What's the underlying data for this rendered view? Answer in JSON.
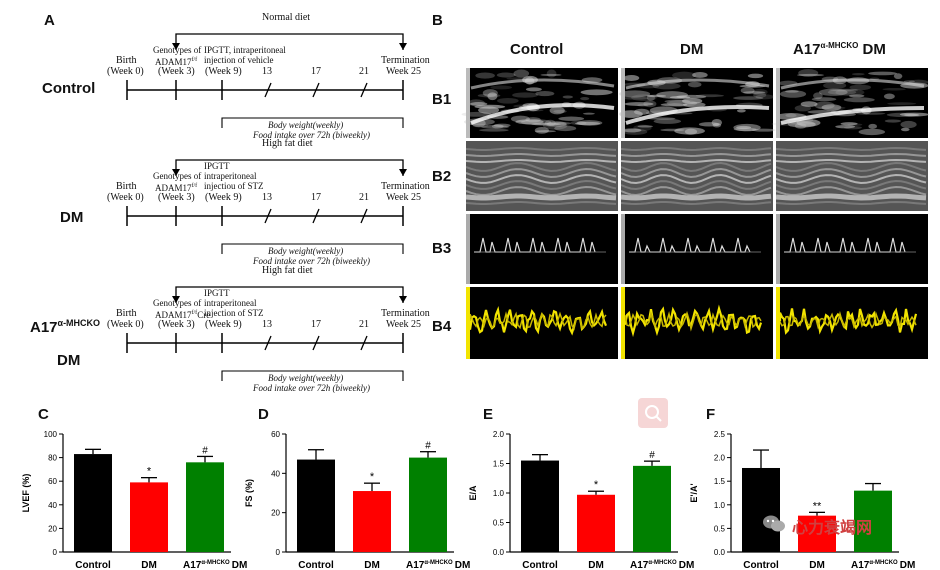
{
  "panels": {
    "A": "A",
    "B": "B",
    "C": "C",
    "D": "D",
    "E": "E",
    "F": "F"
  },
  "timeline": {
    "groups": [
      {
        "label": "Control",
        "diet": "Normal diet",
        "birth": "Birth",
        "birth_week": "(Week 0)",
        "genotype_l1": "Genotypes of",
        "genotype_l2": "ADAM17",
        "genotype_sup": "f/f",
        "genotype_week": "(Week 3)",
        "ipgtt_l1": "IPGTT, intraperitoneal",
        "ipgtt_l2": "injection of vehicle",
        "ipgtt_l3": "",
        "ipgtt_week": "(Week 9)",
        "w13": "13",
        "w17": "17",
        "w21": "21",
        "term": "Termination",
        "term_week": "Week 25",
        "bw": "Body weight(weekly)",
        "food": "Food intake over 72h (biweekly)"
      },
      {
        "label": "DM",
        "diet": "High fat diet",
        "birth": "Birth",
        "birth_week": "(Week 0)",
        "genotype_l1": "Genotypes of",
        "genotype_l2": "ADAM17",
        "genotype_sup": "f/f",
        "genotype_week": "(Week 3)",
        "ipgtt_l1": "IPGTT",
        "ipgtt_l2": "intraperitoneal",
        "ipgtt_l3": "injectiou of STZ",
        "ipgtt_week": "(Week 9)",
        "w13": "13",
        "w17": "17",
        "w21": "21",
        "term": "Termination",
        "term_week": "Week 25",
        "bw": "Body weight(weekly)",
        "food": "Food intake over 72h (biweekly)"
      },
      {
        "label": "A17",
        "label_sup": "α-MHCKO",
        "label2": "DM",
        "diet": "High fat diet",
        "birth": "Birth",
        "birth_week": "(Week 0)",
        "genotype_l1": "Genotypes of",
        "genotype_l2": "ADAM17",
        "genotype_sup": "f/f",
        "genotype_l2b": "Cre",
        "genotype_week": "(Week 3)",
        "ipgtt_l1": "IPGTT",
        "ipgtt_l2": "intraperitoneal",
        "ipgtt_l3": "injection of STZ",
        "ipgtt_week": "(Week 9)",
        "w13": "13",
        "w17": "17",
        "w21": "21",
        "term": "Termination",
        "term_week": "Week 25",
        "bw": "Body weight(weekly)",
        "food": "Food intake over 72h (biweekly)"
      }
    ]
  },
  "echo": {
    "columns": [
      "Control",
      "DM",
      "A17"
    ],
    "col3_sup": "α-MHCKO",
    "col3_suffix": " DM",
    "rows": [
      "B1",
      "B2",
      "B3",
      "B4"
    ]
  },
  "watermark": {
    "text": "心力衰竭网"
  },
  "chart_data": [
    {
      "panel": "C",
      "type": "bar",
      "title": "",
      "ylabel": "LVEF (%)",
      "xlabel": "",
      "categories": [
        "Control",
        "DM",
        "A17"
      ],
      "cat3_sup": "α-MHCKO",
      "cat3_suffix": "DM",
      "values": [
        83,
        59,
        76
      ],
      "errors": [
        4,
        4,
        5
      ],
      "significance": [
        "",
        "*",
        "#"
      ],
      "colors": [
        "#000000",
        "#ff0000",
        "#008000"
      ],
      "ylim": [
        0,
        100
      ],
      "yticks": [
        0,
        20,
        40,
        60,
        80,
        100
      ],
      "ytick_labels": [
        "0",
        "20",
        "40",
        "60",
        "80",
        "100"
      ]
    },
    {
      "panel": "D",
      "type": "bar",
      "title": "",
      "ylabel": "FS (%)",
      "xlabel": "",
      "categories": [
        "Control",
        "DM",
        "A17"
      ],
      "cat3_sup": "α-MHCKO",
      "cat3_suffix": "DM",
      "values": [
        47,
        31,
        48
      ],
      "errors": [
        5,
        4,
        3
      ],
      "significance": [
        "",
        "*",
        "#"
      ],
      "colors": [
        "#000000",
        "#ff0000",
        "#008000"
      ],
      "ylim": [
        0,
        60
      ],
      "yticks": [
        0,
        20,
        40,
        60
      ],
      "ytick_labels": [
        "0",
        "20",
        "40",
        "60"
      ]
    },
    {
      "panel": "E",
      "type": "bar",
      "title": "",
      "ylabel": "E/A",
      "xlabel": "",
      "categories": [
        "Control",
        "DM",
        "A17"
      ],
      "cat3_sup": "α-MHCKO",
      "cat3_suffix": "DM",
      "values": [
        1.55,
        0.97,
        1.46
      ],
      "errors": [
        0.1,
        0.06,
        0.08
      ],
      "significance": [
        "",
        "*",
        "#"
      ],
      "colors": [
        "#000000",
        "#ff0000",
        "#008000"
      ],
      "ylim": [
        0,
        2.0
      ],
      "yticks": [
        0,
        0.5,
        1.0,
        1.5,
        2.0
      ],
      "ytick_labels": [
        "0.0",
        "0.5",
        "1.0",
        "1.5",
        "2.0"
      ]
    },
    {
      "panel": "F",
      "type": "bar",
      "title": "",
      "ylabel": "E'/A'",
      "xlabel": "",
      "categories": [
        "Control",
        "DM",
        "A17"
      ],
      "cat3_sup": "α-MHCKO",
      "cat3_suffix": "DM",
      "values": [
        1.78,
        0.77,
        1.3
      ],
      "errors": [
        0.38,
        0.07,
        0.15
      ],
      "significance": [
        "",
        "**",
        ""
      ],
      "colors": [
        "#000000",
        "#ff0000",
        "#008000"
      ],
      "ylim": [
        0,
        2.5
      ],
      "yticks": [
        0,
        0.5,
        1.0,
        1.5,
        2.0,
        2.5
      ],
      "ytick_labels": [
        "0.0",
        "0.5",
        "1.0",
        "1.5",
        "2.0",
        "2.5"
      ]
    }
  ]
}
